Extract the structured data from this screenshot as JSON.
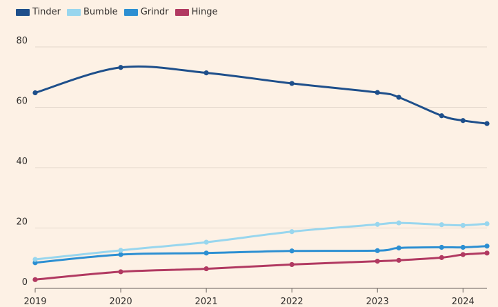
{
  "chart_data": {
    "type": "line",
    "title": "",
    "xlabel": "",
    "ylabel": "",
    "ylim": [
      0,
      80
    ],
    "xlim": [
      2019,
      2024.28
    ],
    "yticks": [
      0,
      20,
      40,
      60,
      80
    ],
    "xticks": [
      2019,
      2020,
      2021,
      2022,
      2023,
      2024
    ],
    "grid": "horizontal",
    "legend_position": "top-left",
    "series": [
      {
        "name": "Tinder",
        "color": "#1e4f8b",
        "x": [
          2019,
          2020,
          2021,
          2022,
          2023,
          2023.25,
          2023.75,
          2024,
          2024.28
        ],
        "values": [
          64.8,
          73.2,
          71.4,
          67.9,
          64.9,
          63.3,
          57.2,
          55.6,
          54.6
        ]
      },
      {
        "name": "Bumble",
        "color": "#98d6ee",
        "x": [
          2019,
          2020,
          2021,
          2022,
          2023,
          2023.25,
          2023.75,
          2024,
          2024.28
        ],
        "values": [
          9.6,
          12.6,
          15.3,
          18.8,
          21.2,
          21.7,
          21.1,
          20.9,
          21.4
        ]
      },
      {
        "name": "Grindr",
        "color": "#2c8fd2",
        "x": [
          2019,
          2020,
          2021,
          2022,
          2023,
          2023.25,
          2023.75,
          2024,
          2024.28
        ],
        "values": [
          8.5,
          11.2,
          11.7,
          12.4,
          12.5,
          13.4,
          13.6,
          13.6,
          14.0
        ]
      },
      {
        "name": "Hinge",
        "color": "#b13961",
        "x": [
          2019,
          2020,
          2021,
          2022,
          2023,
          2023.25,
          2023.75,
          2024,
          2024.28
        ],
        "values": [
          2.9,
          5.5,
          6.5,
          7.9,
          9.0,
          9.3,
          10.2,
          11.2,
          11.7
        ]
      }
    ]
  }
}
